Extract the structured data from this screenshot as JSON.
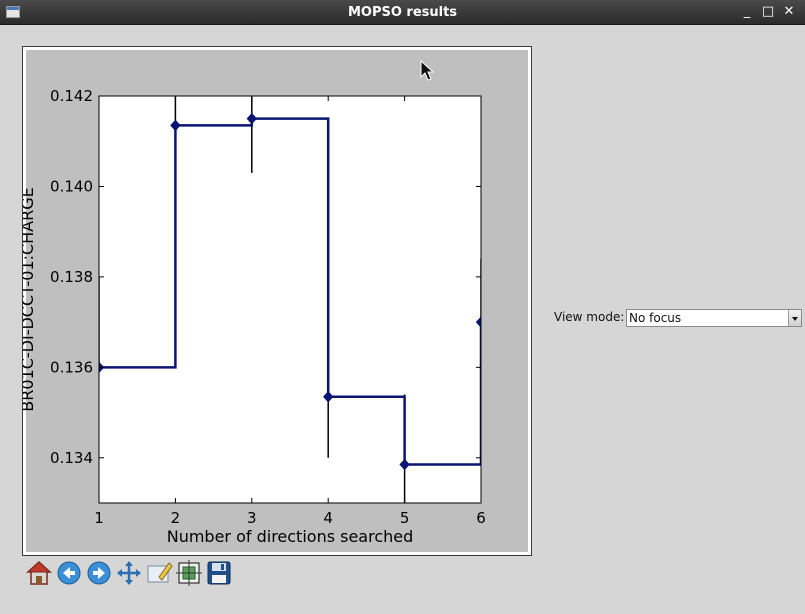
{
  "window": {
    "title": "MOPSO results",
    "controls": {
      "minimize": "_",
      "maximize": "□",
      "close": "✕"
    }
  },
  "view_mode": {
    "label": "View mode:",
    "value": "No focus"
  },
  "toolbar": {
    "buttons": [
      {
        "name": "home-button",
        "icon": "home-icon"
      },
      {
        "name": "back-button",
        "icon": "back-arrow-icon"
      },
      {
        "name": "forward-button",
        "icon": "forward-arrow-icon"
      },
      {
        "name": "pan-button",
        "icon": "move-arrows-icon"
      },
      {
        "name": "zoom-button",
        "icon": "zoom-rect-icon"
      },
      {
        "name": "subplots-button",
        "icon": "subplots-config-icon"
      },
      {
        "name": "save-button",
        "icon": "floppy-disk-icon"
      }
    ]
  },
  "colors": {
    "line": "#0a1472",
    "marker": "#0a1472",
    "errorbar": "#000000",
    "figure_bg": "#bfbfbf",
    "axes_bg": "#ffffff"
  },
  "chart_data": {
    "type": "line",
    "style": "step",
    "title": "",
    "xlabel": "Number of directions searched",
    "ylabel": "BR01C-DI-DCCT-01:CHARGE",
    "xlim": [
      1,
      6
    ],
    "ylim": [
      0.133,
      0.142
    ],
    "xticks": [
      "1",
      "2",
      "3",
      "4",
      "5",
      "6"
    ],
    "yticks": [
      "0.134",
      "0.136",
      "0.138",
      "0.140",
      "0.142"
    ],
    "grid": false,
    "series": [
      {
        "x": [
          1,
          2,
          3,
          4,
          5,
          6
        ],
        "y": [
          0.136,
          0.14135,
          0.1415,
          0.13535,
          0.13385,
          0.137
        ],
        "yerr_low": [
          0.136,
          0.1405,
          0.1403,
          0.134,
          0.1325,
          0.134
        ],
        "yerr_high": [
          0.138,
          0.1422,
          0.1427,
          0.137,
          0.1354,
          0.1384
        ]
      }
    ]
  }
}
